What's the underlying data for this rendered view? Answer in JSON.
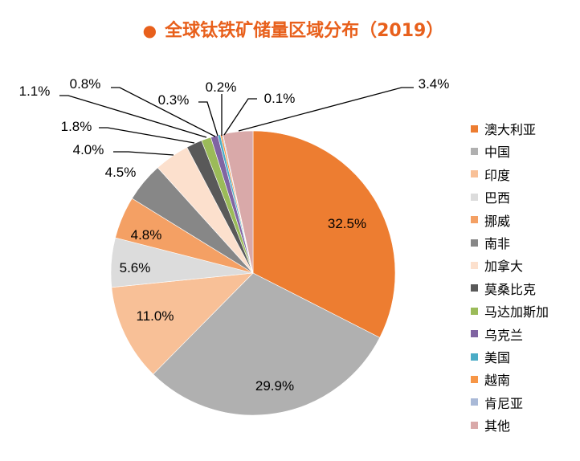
{
  "title": "全球钛铁矿储量区域分布（2019）",
  "title_color": "#e8601c",
  "chart_data": {
    "type": "pie",
    "title": "全球钛铁矿储量区域分布（2019）",
    "start": "top",
    "direction": "clockwise",
    "legend_position": "right",
    "slices": [
      {
        "name": "澳大利亚",
        "value": 32.5,
        "label": "32.5%",
        "color": "#ED7D31"
      },
      {
        "name": "中国",
        "value": 29.9,
        "label": "29.9%",
        "color": "#B0B0B0"
      },
      {
        "name": "印度",
        "value": 11.0,
        "label": "11.0%",
        "color": "#F8C097"
      },
      {
        "name": "巴西",
        "value": 5.6,
        "label": "5.6%",
        "color": "#DCDCDC"
      },
      {
        "name": "挪威",
        "value": 4.8,
        "label": "4.8%",
        "color": "#F4A064"
      },
      {
        "name": "南非",
        "value": 4.5,
        "label": "4.5%",
        "color": "#878787"
      },
      {
        "name": "加拿大",
        "value": 4.0,
        "label": "4.0%",
        "color": "#FCE0CD"
      },
      {
        "name": "莫桑比克",
        "value": 1.8,
        "label": "1.8%",
        "color": "#595959"
      },
      {
        "name": "马达加斯加",
        "value": 1.1,
        "label": "1.1%",
        "color": "#9BBB59"
      },
      {
        "name": "乌克兰",
        "value": 0.8,
        "label": "0.8%",
        "color": "#8064A2"
      },
      {
        "name": "美国",
        "value": 0.3,
        "label": "0.3%",
        "color": "#4BACC6"
      },
      {
        "name": "越南",
        "value": 0.2,
        "label": "0.2%",
        "color": "#F79646"
      },
      {
        "name": "肯尼亚",
        "value": 0.1,
        "label": "0.1%",
        "color": "#A9B9D7"
      },
      {
        "name": "其他",
        "value": 3.4,
        "label": "3.4%",
        "color": "#D9A9A9"
      }
    ]
  }
}
